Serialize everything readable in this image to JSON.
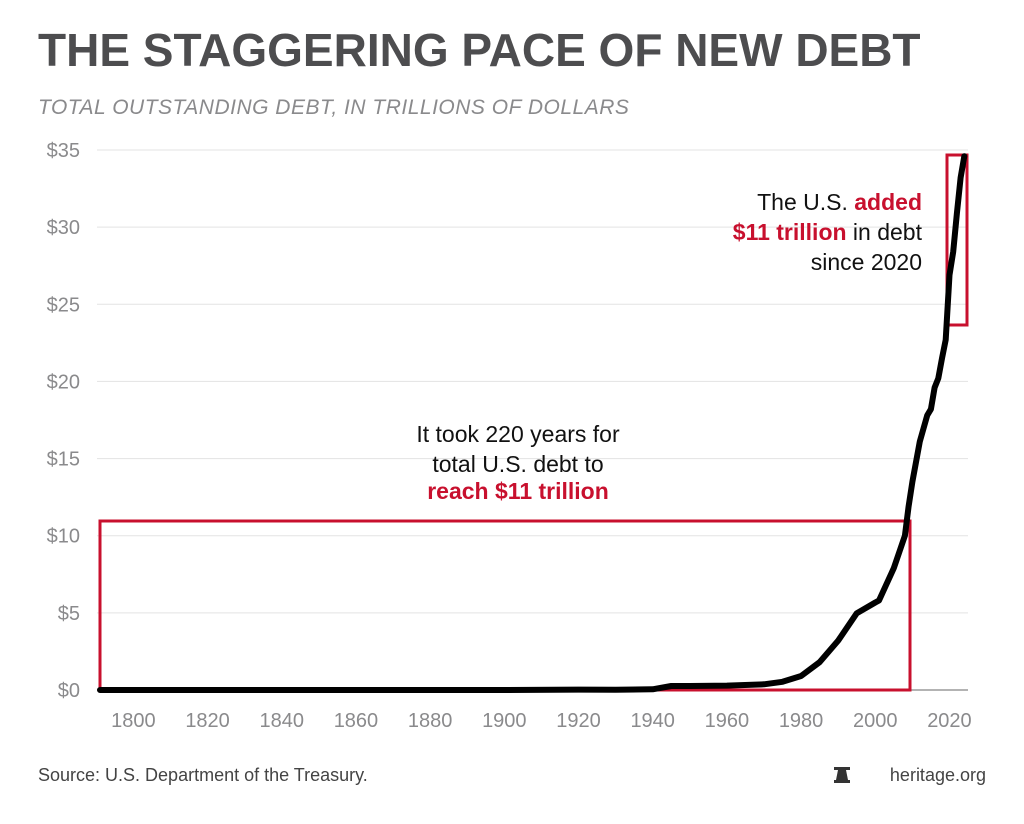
{
  "chart_data": {
    "type": "line",
    "title": "THE STAGGERING PACE OF NEW DEBT",
    "subtitle": "TOTAL OUTSTANDING DEBT, IN TRILLIONS OF DOLLARS",
    "x": [
      1791,
      1800,
      1850,
      1900,
      1920,
      1930,
      1940,
      1945,
      1950,
      1960,
      1970,
      1975,
      1980,
      1985,
      1990,
      1995,
      2000,
      2001,
      2005,
      2008,
      2009,
      2010,
      2012,
      2014,
      2015,
      2016,
      2017,
      2018,
      2019,
      2020,
      2021,
      2022,
      2023,
      2024
    ],
    "values": [
      8e-05,
      8e-05,
      6e-05,
      0.0012,
      0.026,
      0.016,
      0.043,
      0.259,
      0.257,
      0.286,
      0.37,
      0.53,
      0.91,
      1.8,
      3.2,
      4.97,
      5.67,
      5.8,
      7.9,
      10.0,
      11.9,
      13.5,
      16.1,
      17.8,
      18.2,
      19.6,
      20.2,
      21.5,
      22.7,
      26.9,
      28.4,
      30.9,
      33.2,
      34.6
    ],
    "color": "#000000",
    "xlim": [
      1791,
      2025
    ],
    "xticks": [
      1800,
      1820,
      1840,
      1860,
      1880,
      1900,
      1920,
      1940,
      1960,
      1980,
      2000,
      2020
    ],
    "ylim": [
      0,
      35
    ],
    "yticks": [
      {
        "value": 0,
        "label": "$0"
      },
      {
        "value": 5,
        "label": "$5"
      },
      {
        "value": 10,
        "label": "$10"
      },
      {
        "value": 15,
        "label": "$15"
      },
      {
        "value": 20,
        "label": "$20"
      },
      {
        "value": 25,
        "label": "$25"
      },
      {
        "value": 30,
        "label": "$30"
      },
      {
        "value": 35,
        "label": "$35"
      }
    ],
    "grid": true,
    "annotations": [
      {
        "lines": [
          [
            "It took 220 years for"
          ],
          [
            "total U.S. debt to"
          ],
          [
            "reach $11 trillion"
          ]
        ]
      },
      {
        "lines": [
          [
            "The U.S. ",
            "added"
          ],
          [
            "$11 trillion",
            " in debt"
          ],
          [
            "since 2020"
          ]
        ]
      }
    ],
    "source": "Source: U.S. Department of the Treasury.",
    "credit": "heritage.org"
  }
}
